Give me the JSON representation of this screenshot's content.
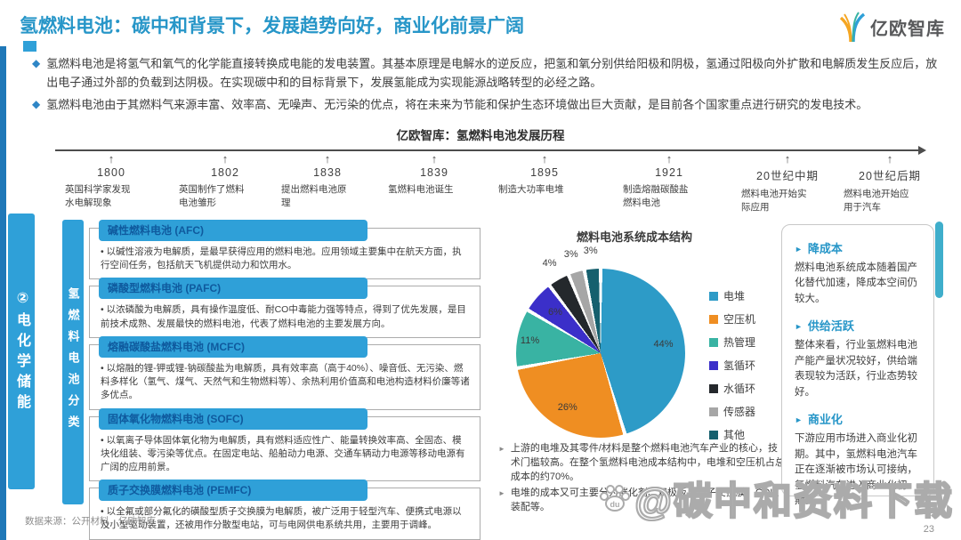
{
  "header": {
    "title": "氢燃料电池：碳中和背景下，发展趋势向好，商业化前景广阔",
    "logo_text": "亿欧智库"
  },
  "intro": {
    "bullets": [
      "氢燃料电池是将氢气和氧气的化学能直接转换成电能的发电装置。其基本原理是电解水的逆反应，把氢和氧分别供给阳极和阴极，氢通过阳极向外扩散和电解质发生反应后，放出电子通过外部的负载到达阴极。在实现碳中和的目标背景下，发展氢能成为实现能源战略转型的必经之路。",
      "氢燃料电池由于其燃料气来源丰富、效率高、无噪声、无污染的优点，将在未来为节能和保护生态环境做出巨大贡献，是目前各个国家重点进行研究的发电技术。"
    ]
  },
  "timeline": {
    "title": "亿欧智库：氢燃料电池发展历程",
    "items": [
      {
        "year": "1800",
        "desc": "英国科学家发现水电解现象"
      },
      {
        "year": "1802",
        "desc": "英国制作了燃料电池雏形"
      },
      {
        "year": "1838",
        "desc": "提出燃料电池原理"
      },
      {
        "year": "1839",
        "desc": "氢燃料电池诞生"
      },
      {
        "year": "1895",
        "desc": "制造大功率电堆"
      },
      {
        "year": "1921",
        "desc": "制造熔融碳酸盐燃料电池"
      },
      {
        "year": "20世纪中期",
        "desc": "燃料电池开始实际应用"
      },
      {
        "year": "20世纪后期",
        "desc": "燃料电池开始应用于汽车"
      }
    ]
  },
  "sidebar": {
    "section_label": "②电化学储能",
    "category_label": "氢燃料电池分类"
  },
  "fuel_cells": [
    {
      "name": "碱性燃料电池 (AFC)",
      "desc": "以碱性溶液为电解质，是最早获得应用的燃料电池。应用领域主要集中在航天方面，执行空间任务，包括航天飞机提供动力和饮用水。"
    },
    {
      "name": "磷酸型燃料电池 (PAFC)",
      "desc": "以浓磷酸为电解质，具有操作温度低、耐CO中毒能力强等特点，得到了优先发展，是目前技术成熟、发展最快的燃料电池，代表了燃料电池的主要发展方向。"
    },
    {
      "name": "熔融碳酸盐燃料电池 (MCFC)",
      "desc": "以熔融的锂-钾或锂-钠碳酸盐为电解质，具有效率高（高于40%）、噪音低、无污染、燃料多样化（氢气、煤气、天然气和生物燃料等）、余热利用价值高和电池构造材料价廉等诸多优点。"
    },
    {
      "name": "固体氧化物燃料电池 (SOFC)",
      "desc": "以氧离子导体固体氧化物为电解质，具有燃料适应性广、能量转换效率高、全固态、模块化组装、零污染等优点。在固定电站、船舶动力电源、交通车辆动力电源等移动电源有广阔的应用前景。"
    },
    {
      "name": "质子交换膜燃料电池 (PEMFC)",
      "desc": "以全氟或部分氟化的磺酸型质子交换膜为电解质，被广泛用于轻型汽车、便携式电源以及小型驱动装置，还被用作分散型电站，可与电网供电系统共用，主要用于调峰。"
    }
  ],
  "chart_data": {
    "type": "pie",
    "title": "燃料电池系统成本结构",
    "labels": [
      "电堆",
      "空压机",
      "热管理",
      "氢循环",
      "水循环",
      "传感器",
      "其他"
    ],
    "values": [
      44,
      26,
      11,
      6,
      4,
      3,
      3
    ],
    "value_labels": [
      "44%",
      "26%",
      "11%",
      "6%",
      "4%",
      "3%",
      "3%"
    ],
    "colors": [
      "#2D9BC7",
      "#EF8E22",
      "#39B3A3",
      "#3B2FC9",
      "#24282C",
      "#A6A6A6",
      "#16606E"
    ],
    "legend_position": "right"
  },
  "notes": [
    "上游的电堆及其零件/材料是整个燃料电池汽车产业的核心，技术门槛较高。在整个氢燃料电池成本结构中，电堆和空压机占总成本的约70%。",
    "电堆的成本又可主要分为催化剂、双极板、质子交换膜、GDL、装配等。"
  ],
  "panel": {
    "sections": [
      {
        "title": "降成本",
        "body": "燃料电池系统成本随着国产化替代加速，降成本空间仍较大。"
      },
      {
        "title": "供给活跃",
        "body": "整体来看，行业氢燃料电池产能产量状况较好，供给端表现较为活跃，行业态势较好。"
      },
      {
        "title": "商业化",
        "body": "下游应用市场进入商业化初期。其中，氢燃料电池汽车正在逐渐被市场认可接纳，氢燃料汽车进入商业化初期。"
      }
    ]
  },
  "footer": {
    "source": "数据来源：公开材料，亿欧智库",
    "page_number": "23",
    "watermark": "@碳中和资料下载"
  },
  "theme": {
    "title_blue": "#2796C8",
    "bar_blue": "#2FA0D8",
    "edge_blue": "#1F78B8",
    "accent_teal": "#3FAECB"
  }
}
